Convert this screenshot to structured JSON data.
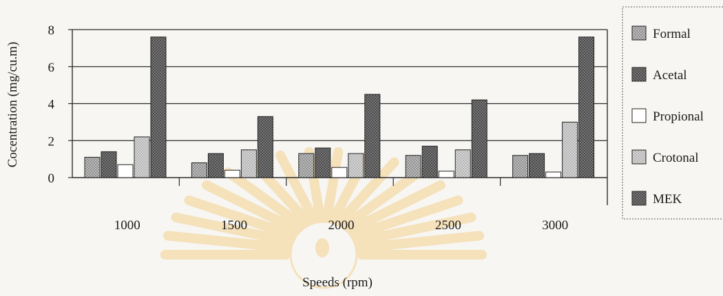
{
  "chart_data": {
    "type": "bar",
    "title": "",
    "xlabel": "Speeds (rpm)",
    "ylabel": "Cocentration (mg/cu.m)",
    "categories": [
      "1000",
      "1500",
      "2000",
      "2500",
      "3000"
    ],
    "ylim": [
      0,
      8
    ],
    "yticks": [
      "0",
      "2",
      "4",
      "6",
      "8"
    ],
    "grid": true,
    "legend_position": "right",
    "series": [
      {
        "name": "Formal",
        "values": [
          1.1,
          0.8,
          1.3,
          1.2,
          1.2
        ],
        "color": "#a9a9a9",
        "pattern": "dotted-light"
      },
      {
        "name": "Acetal",
        "values": [
          1.4,
          1.3,
          1.6,
          1.7,
          1.3
        ],
        "color": "#707070",
        "pattern": "dotted-dark"
      },
      {
        "name": "Propional",
        "values": [
          0.7,
          0.4,
          0.55,
          0.35,
          0.3
        ],
        "color": "#ffffff",
        "pattern": "none"
      },
      {
        "name": "Crotonal",
        "values": [
          2.2,
          1.5,
          1.3,
          1.5,
          3.0
        ],
        "color": "#c4c4c4",
        "pattern": "dotted-light"
      },
      {
        "name": "MEK",
        "values": [
          7.6,
          3.3,
          4.5,
          4.2,
          7.6
        ],
        "color": "#505050",
        "pattern": "dotted-dark"
      }
    ]
  }
}
